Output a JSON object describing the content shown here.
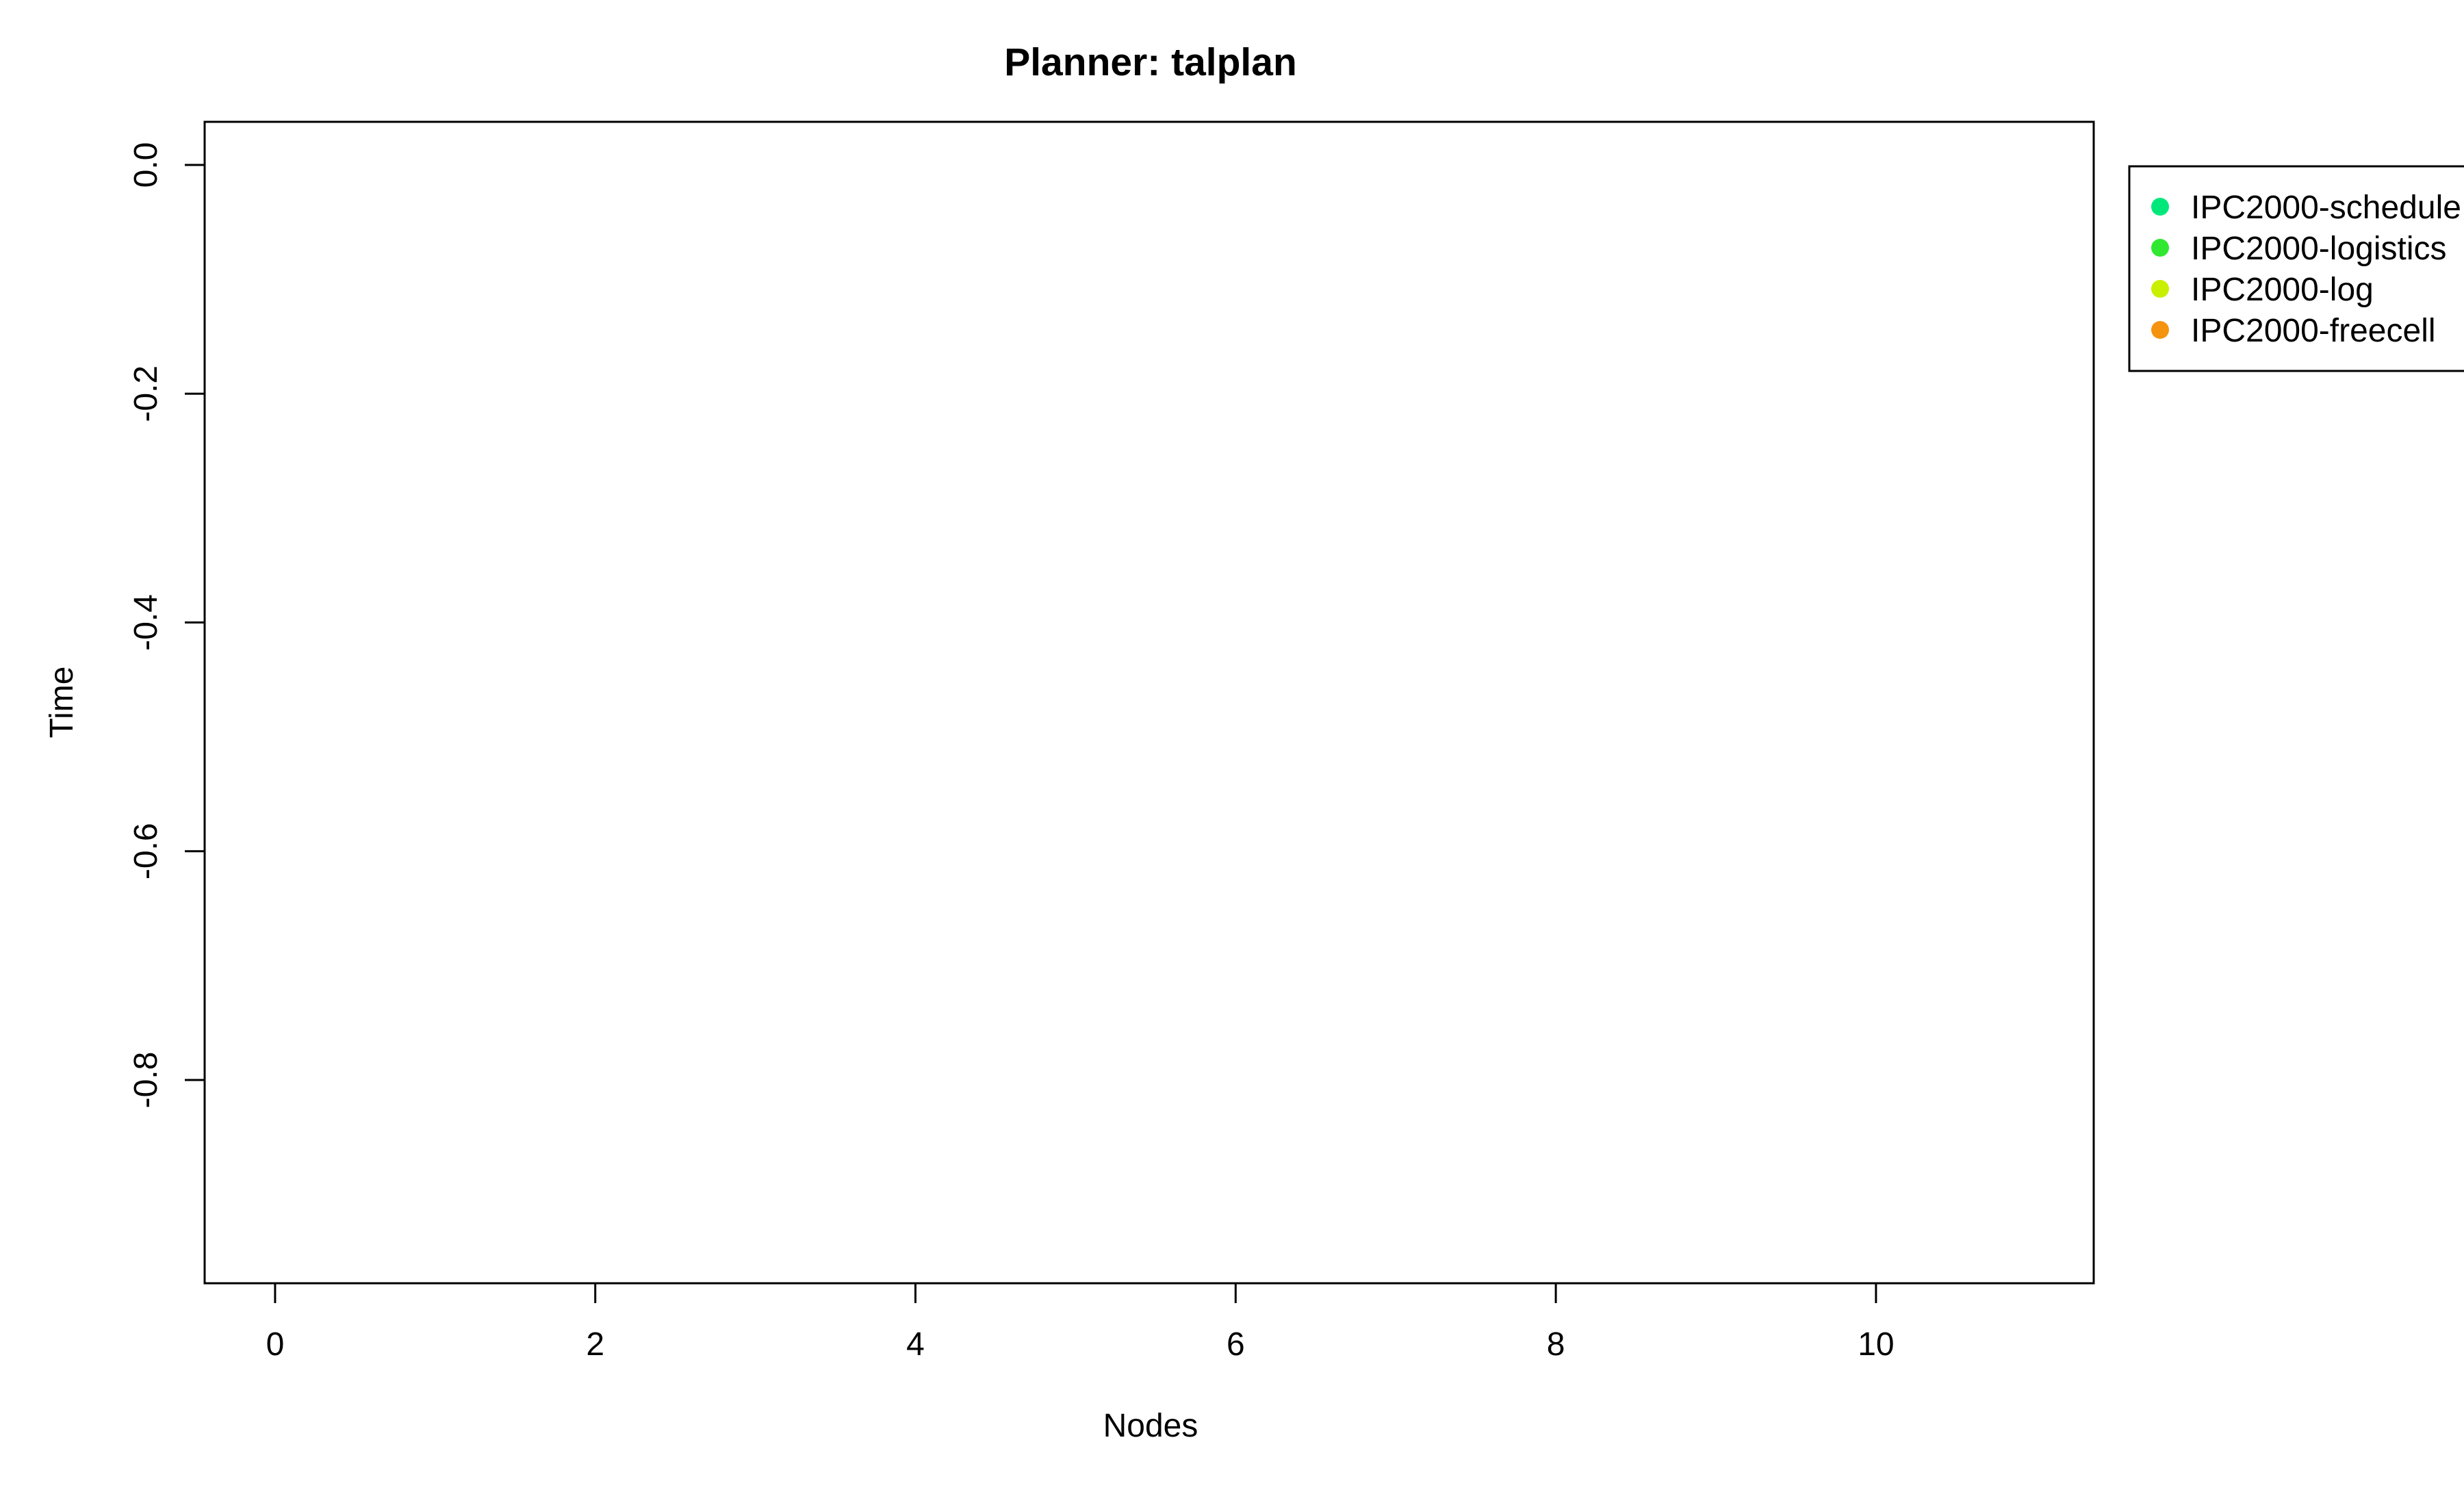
{
  "chart_data": {
    "type": "scatter",
    "title": "Planner: talplan",
    "xlabel": "Nodes",
    "ylabel": "Time",
    "xlim": [
      -0.44,
      11.36
    ],
    "ylim": [
      -0.9777,
      0.0377
    ],
    "x_ticks": [
      "0",
      "2",
      "4",
      "6",
      "8",
      "10"
    ],
    "y_ticks": [
      "0.0",
      "-0.2",
      "-0.4",
      "-0.6",
      "-0.8"
    ],
    "y_axis_direction": "reversed",
    "grid": false,
    "legend_position": "top-right, outside plot area",
    "series": [
      {
        "name": "IPC2000-schedule",
        "color": "#00E87A",
        "points": []
      },
      {
        "name": "IPC2000-logistics",
        "color": "#30E830",
        "points": []
      },
      {
        "name": "IPC2000-log",
        "color": "#C8F000",
        "points": []
      },
      {
        "name": "IPC2000-freecell",
        "color": "#F5930E",
        "points": []
      }
    ]
  }
}
